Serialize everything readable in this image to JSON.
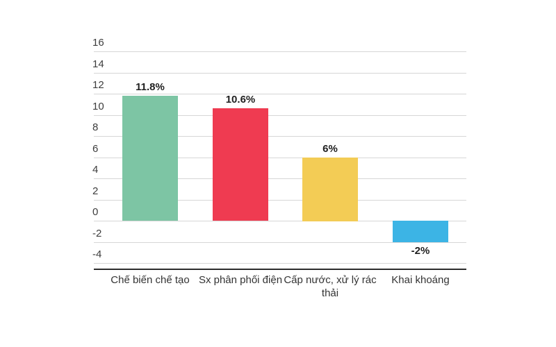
{
  "chart_data": {
    "type": "bar",
    "title": "",
    "xlabel": "",
    "ylabel": "",
    "categories": [
      "Chế biến chế tạo",
      "Sx phân phối điện",
      "Cấp nước, xử lý rác thải",
      "Khai khoáng"
    ],
    "values": [
      11.8,
      10.6,
      6,
      -2
    ],
    "value_labels": [
      "11.8%",
      "10.6%",
      "6%",
      "-2%"
    ],
    "bar_colors": [
      "#7dc5a4",
      "#ef3b51",
      "#f3cc55",
      "#3cb4e5"
    ],
    "ylim": [
      -4,
      16
    ],
    "yticks": [
      16,
      14,
      12,
      10,
      8,
      6,
      4,
      2,
      0,
      -2,
      -4
    ],
    "grid": true,
    "legend": false
  },
  "colors": {
    "background": "#ffffff",
    "gridline": "#d6d6d6",
    "axis_line": "#2b2b2b",
    "tick_label": "#3d3d3d",
    "value_label": "#1f1f1f",
    "category_label": "#333333"
  }
}
